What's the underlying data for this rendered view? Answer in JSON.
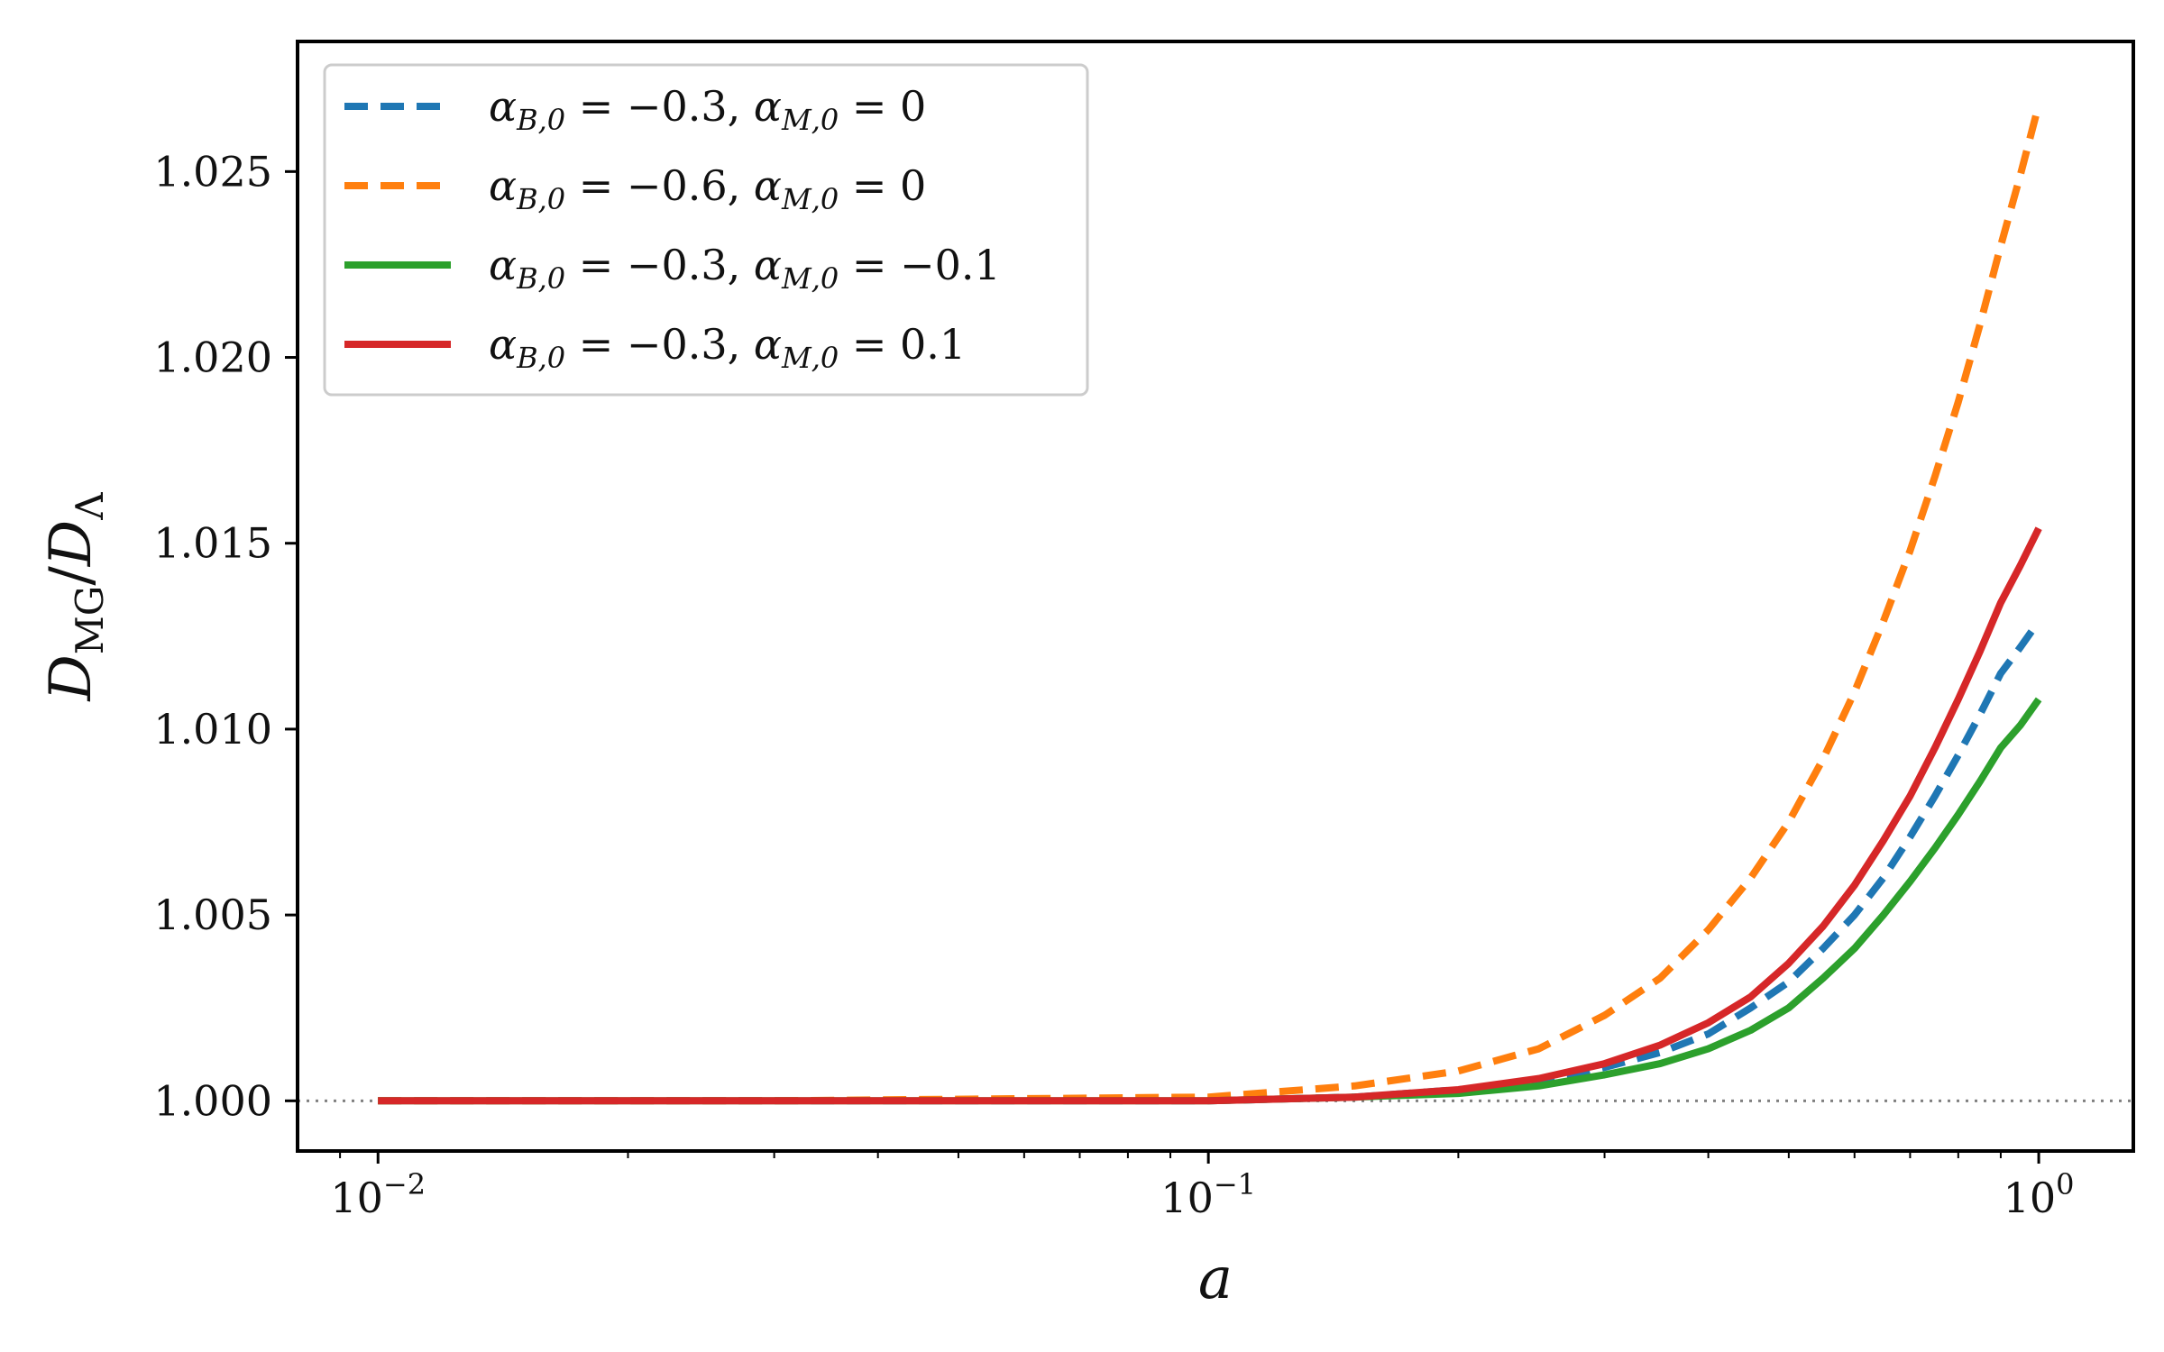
{
  "chart_data": {
    "type": "line",
    "xscale": "log",
    "xlim": [
      0.008,
      1.3
    ],
    "ylim": [
      0.99865,
      1.0285
    ],
    "x_ticks": [
      {
        "value": 0.01,
        "base": "10",
        "exp": "−2"
      },
      {
        "value": 0.1,
        "base": "10",
        "exp": "−1"
      },
      {
        "value": 1,
        "base": "10",
        "exp": "0"
      }
    ],
    "y_ticks": [
      {
        "value": 1.0,
        "label": "1.000"
      },
      {
        "value": 1.005,
        "label": "1.005"
      },
      {
        "value": 1.01,
        "label": "1.010"
      },
      {
        "value": 1.015,
        "label": "1.015"
      },
      {
        "value": 1.02,
        "label": "1.020"
      },
      {
        "value": 1.025,
        "label": "1.025"
      }
    ],
    "xlabel": "a",
    "ylabel": {
      "main": "D",
      "sub": "MG",
      "slash": "/",
      "main2": "D",
      "sub2": "Λ"
    },
    "reference_line": {
      "y": 1.0,
      "style": "dotted",
      "color": "#808080"
    },
    "legend_position": "upper-left",
    "series": [
      {
        "name": "α_{B,0} = −0.3, α_{M,0} = 0",
        "legend": {
          "a1": "α",
          "s1": "B,0",
          "v1": " = −0.3, ",
          "a2": "α",
          "s2": "M,0",
          "v2": " = 0"
        },
        "color": "#1f77b4",
        "dash": "dashed",
        "x": [
          0.01,
          0.03,
          0.1,
          0.15,
          0.2,
          0.25,
          0.3,
          0.35,
          0.4,
          0.45,
          0.5,
          0.55,
          0.6,
          0.65,
          0.7,
          0.75,
          0.8,
          0.85,
          0.9,
          0.95,
          1.0
        ],
        "y": [
          1.0,
          1.0,
          1.0,
          1.0001,
          1.0003,
          1.0005,
          1.0009,
          1.0013,
          1.0018,
          1.0025,
          1.0032,
          1.0041,
          1.005,
          1.006,
          1.0071,
          1.0082,
          1.0093,
          1.0104,
          1.0115,
          1.0122,
          1.0129
        ]
      },
      {
        "name": "α_{B,0} = −0.6, α_{M,0} = 0",
        "legend": {
          "a1": "α",
          "s1": "B,0",
          "v1": " = −0.6, ",
          "a2": "α",
          "s2": "M,0",
          "v2": " = 0"
        },
        "color": "#ff7f0e",
        "dash": "dashed",
        "x": [
          0.01,
          0.03,
          0.1,
          0.15,
          0.2,
          0.25,
          0.3,
          0.35,
          0.4,
          0.45,
          0.5,
          0.55,
          0.6,
          0.65,
          0.7,
          0.75,
          0.8,
          0.85,
          0.9,
          0.95,
          1.0
        ],
        "y": [
          1.0,
          1.0,
          1.0001,
          1.0004,
          1.0008,
          1.0014,
          1.0023,
          1.0033,
          1.0046,
          1.006,
          1.0075,
          1.0092,
          1.011,
          1.0129,
          1.0148,
          1.0168,
          1.0188,
          1.0209,
          1.023,
          1.0249,
          1.0268
        ]
      },
      {
        "name": "α_{B,0} = −0.3, α_{M,0} = −0.1",
        "legend": {
          "a1": "α",
          "s1": "B,0",
          "v1": " = −0.3, ",
          "a2": "α",
          "s2": "M,0",
          "v2": " = −0.1"
        },
        "color": "#2ca02c",
        "dash": "solid",
        "x": [
          0.01,
          0.03,
          0.1,
          0.15,
          0.2,
          0.25,
          0.3,
          0.35,
          0.4,
          0.45,
          0.5,
          0.55,
          0.6,
          0.65,
          0.7,
          0.75,
          0.8,
          0.85,
          0.9,
          0.95,
          1.0
        ],
        "y": [
          1.0,
          1.0,
          1.0,
          1.0001,
          1.0002,
          1.0004,
          1.0007,
          1.001,
          1.0014,
          1.0019,
          1.0025,
          1.0033,
          1.0041,
          1.005,
          1.0059,
          1.0068,
          1.0077,
          1.0086,
          1.0095,
          1.0101,
          1.0108
        ]
      },
      {
        "name": "α_{B,0} = −0.3, α_{M,0} = 0.1",
        "legend": {
          "a1": "α",
          "s1": "B,0",
          "v1": " = −0.3, ",
          "a2": "α",
          "s2": "M,0",
          "v2": " = 0.1"
        },
        "color": "#d62728",
        "dash": "solid",
        "x": [
          0.01,
          0.03,
          0.1,
          0.15,
          0.2,
          0.25,
          0.3,
          0.35,
          0.4,
          0.45,
          0.5,
          0.55,
          0.6,
          0.65,
          0.7,
          0.75,
          0.8,
          0.85,
          0.9,
          0.95,
          1.0
        ],
        "y": [
          1.0,
          1.0,
          1.0,
          1.0001,
          1.0003,
          1.0006,
          1.001,
          1.0015,
          1.0021,
          1.0028,
          1.0037,
          1.0047,
          1.0058,
          1.007,
          1.0082,
          1.0095,
          1.0108,
          1.0121,
          1.0134,
          1.0144,
          1.0154
        ]
      }
    ]
  }
}
